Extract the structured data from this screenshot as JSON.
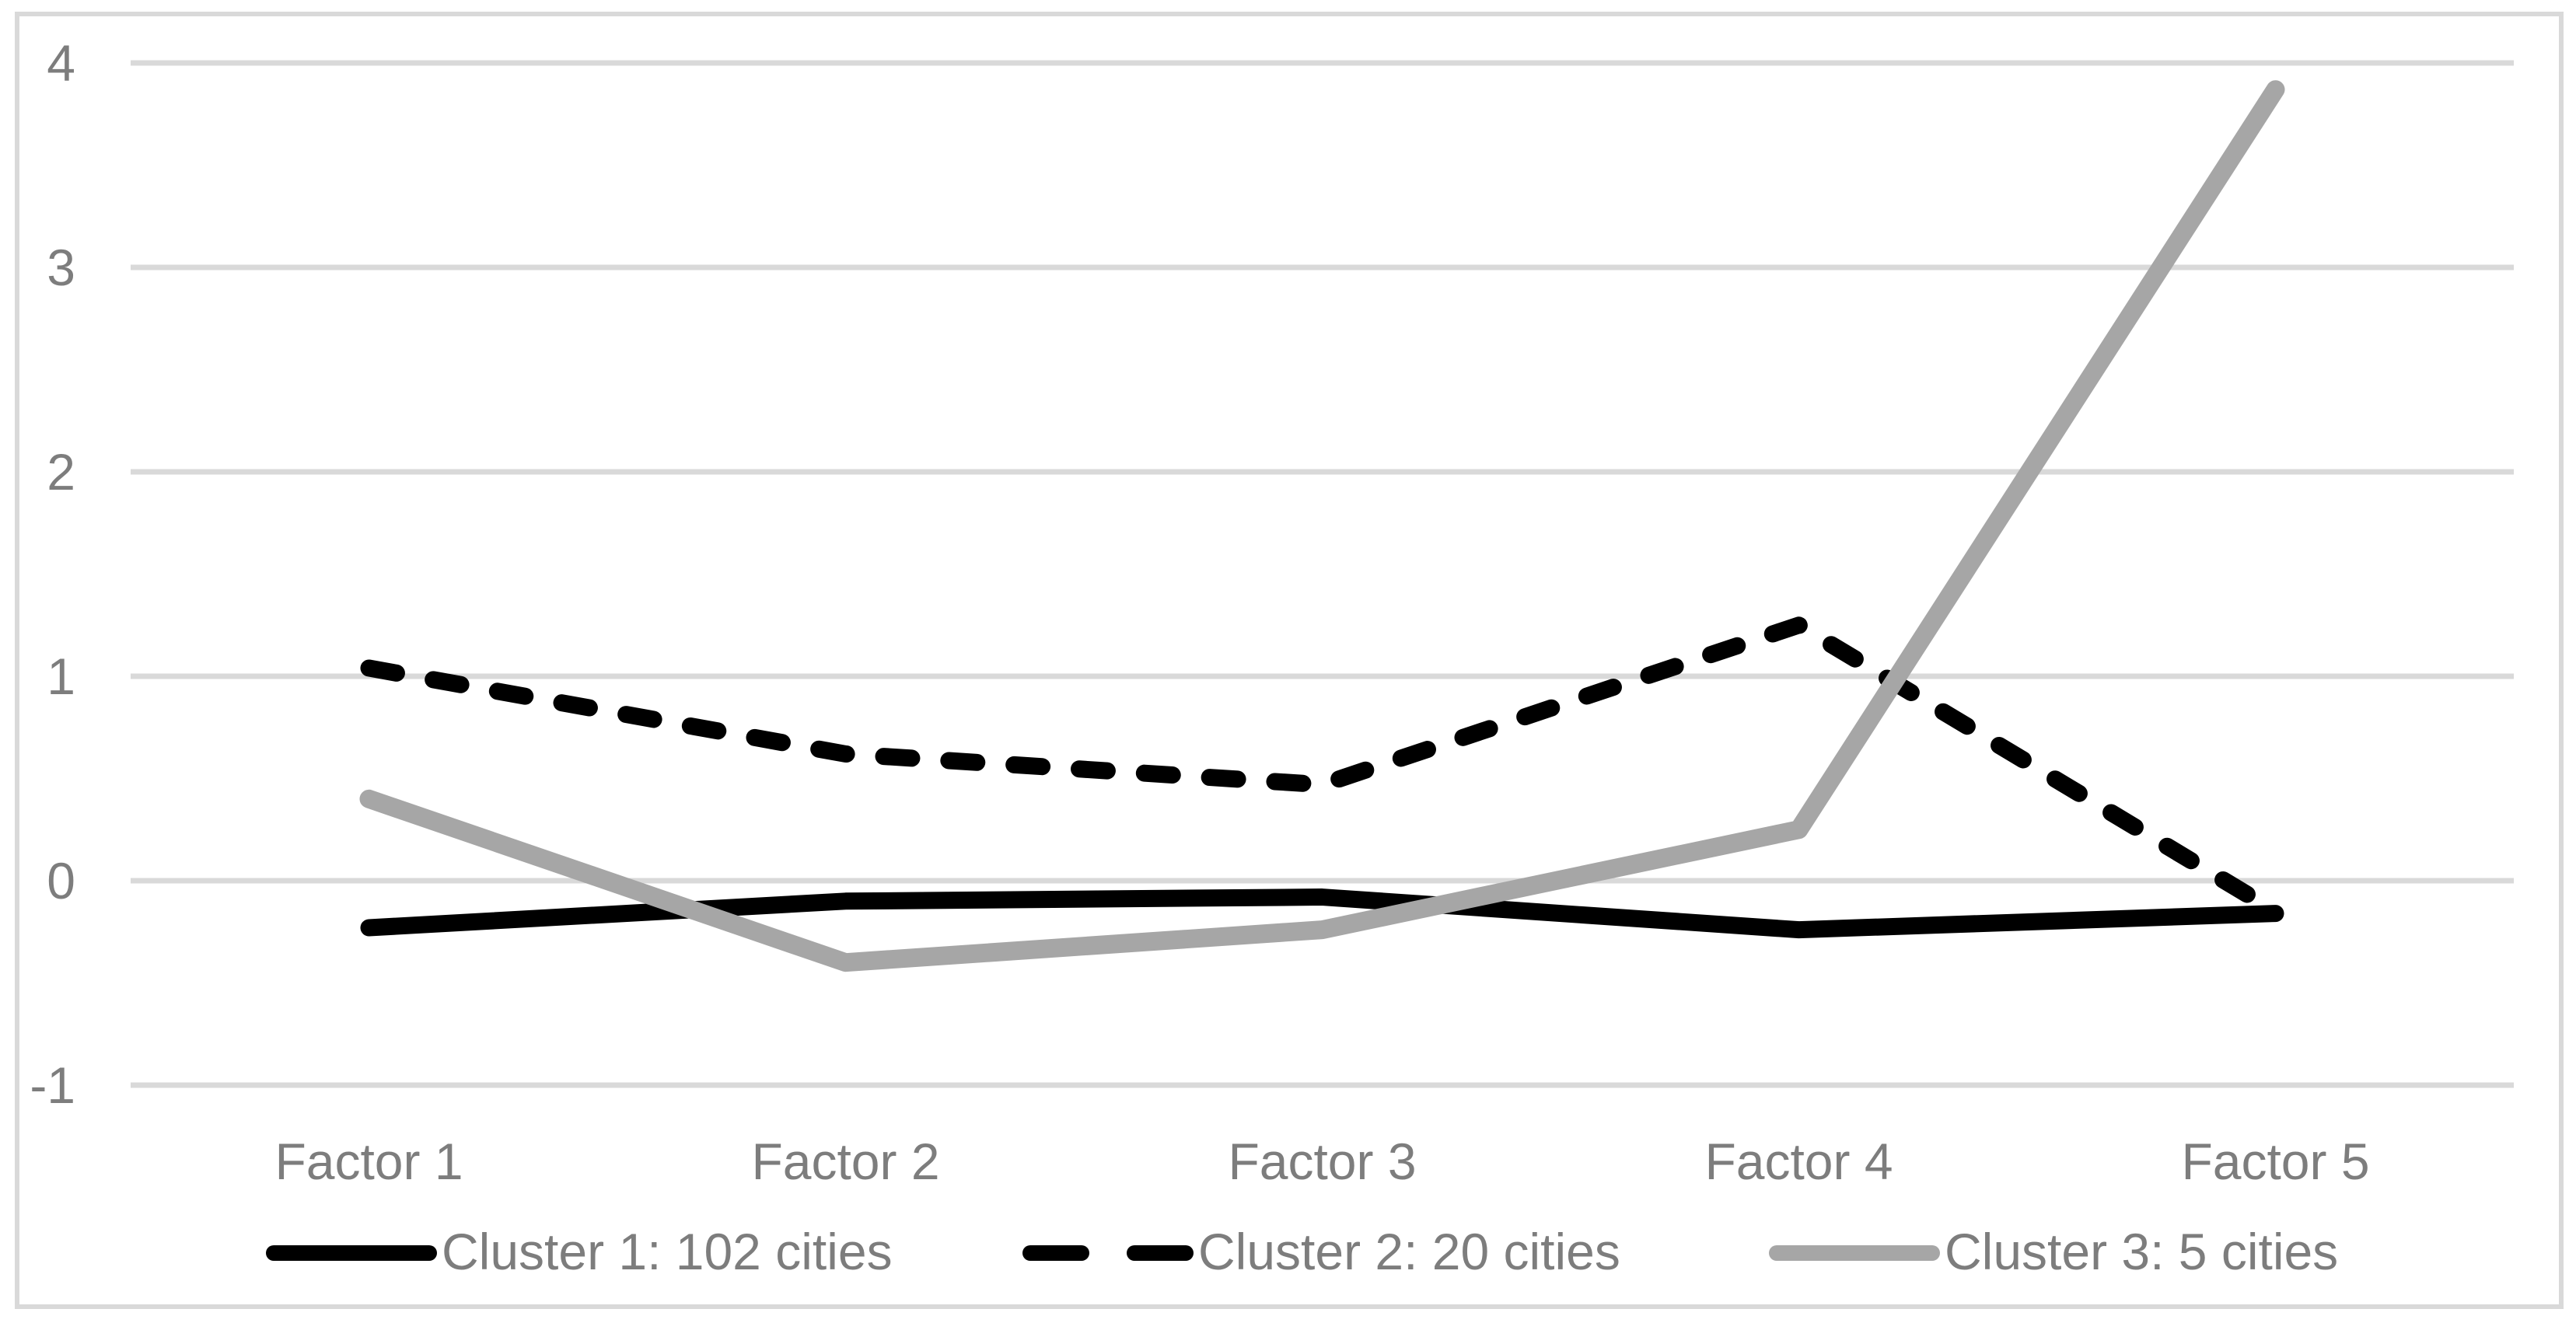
{
  "chart_data": {
    "type": "line",
    "title": "",
    "categories": [
      "Factor 1",
      "Factor 2",
      "Factor 3",
      "Factor 4",
      "Factor 5"
    ],
    "series": [
      {
        "name": "Cluster 1: 102 cities",
        "values": [
          -0.23,
          -0.1,
          -0.08,
          -0.24,
          -0.16
        ],
        "color": "#000000",
        "dash": false
      },
      {
        "name": "Cluster 2: 20 cities",
        "values": [
          1.04,
          0.62,
          0.47,
          1.25,
          -0.15
        ],
        "color": "#000000",
        "dash": true
      },
      {
        "name": "Cluster 3: 5 cities",
        "values": [
          0.4,
          -0.4,
          -0.24,
          0.25,
          3.87
        ],
        "color": "#a6a6a6",
        "dash": false
      }
    ],
    "y_axis": {
      "min": -1,
      "max": 4,
      "ticks": [
        4,
        3,
        2,
        1,
        0,
        -1
      ]
    },
    "grid": true,
    "legend_position": "bottom",
    "styles": {
      "gridline_color": "#d9d9d9",
      "border_color": "#d9d9d9",
      "label_color": "#7d7d7d",
      "background": "#ffffff"
    }
  }
}
